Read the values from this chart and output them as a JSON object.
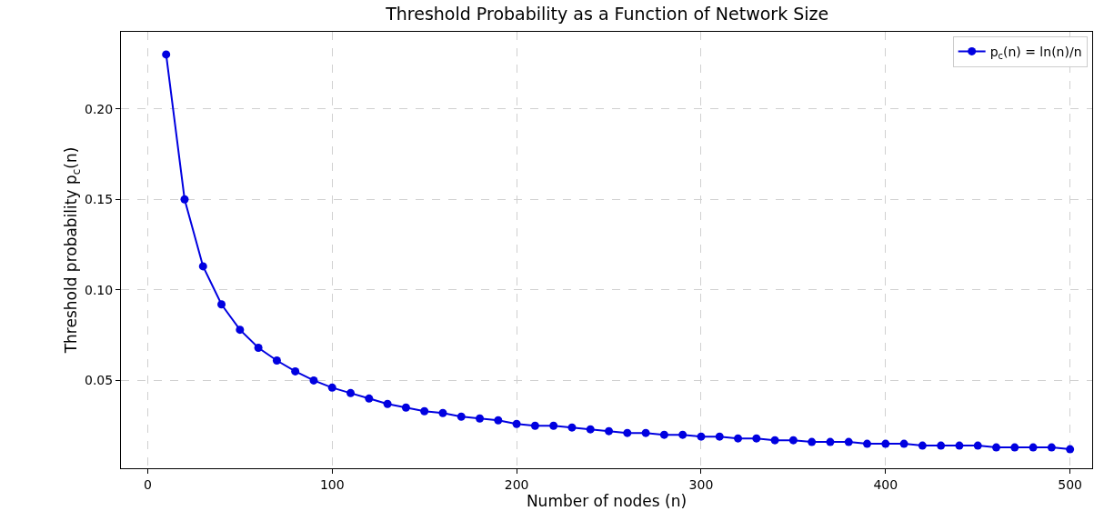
{
  "chart_data": {
    "type": "line",
    "title": "Threshold Probability as a Function of Network Size",
    "xlabel": "Number of nodes (n)",
    "ylabel": "Threshold probability p$_{c}$(n)",
    "x": [
      10,
      20,
      30,
      40,
      50,
      60,
      70,
      80,
      90,
      100,
      110,
      120,
      130,
      140,
      150,
      160,
      170,
      180,
      190,
      200,
      210,
      220,
      230,
      240,
      250,
      260,
      270,
      280,
      290,
      300,
      310,
      320,
      330,
      340,
      350,
      360,
      370,
      380,
      390,
      400,
      410,
      420,
      430,
      440,
      450,
      460,
      470,
      480,
      490,
      500
    ],
    "series": [
      {
        "name": "p$_{c}$(n) = ln(n)/n",
        "color": "#0000e0",
        "values": [
          0.23,
          0.15,
          0.113,
          0.092,
          0.078,
          0.068,
          0.061,
          0.055,
          0.05,
          0.046,
          0.043,
          0.04,
          0.037,
          0.035,
          0.033,
          0.032,
          0.03,
          0.029,
          0.028,
          0.026,
          0.025,
          0.025,
          0.024,
          0.023,
          0.022,
          0.021,
          0.021,
          0.02,
          0.02,
          0.019,
          0.019,
          0.018,
          0.018,
          0.017,
          0.017,
          0.016,
          0.016,
          0.016,
          0.015,
          0.015,
          0.015,
          0.014,
          0.014,
          0.014,
          0.014,
          0.013,
          0.013,
          0.013,
          0.013,
          0.012
        ]
      }
    ],
    "xlim": [
      -14.5,
      512
    ],
    "xticks": [
      0,
      100,
      200,
      300,
      400,
      500
    ],
    "ylim": [
      0.0015,
      0.2425
    ],
    "yticks": [
      {
        "value": 0.05,
        "label": "0.05"
      },
      {
        "value": 0.1,
        "label": "0.10"
      },
      {
        "value": 0.15,
        "label": "0.15"
      },
      {
        "value": 0.2,
        "label": "0.20"
      }
    ],
    "grid": true,
    "legend": "top right",
    "marker": "circle",
    "line_style": "solid"
  }
}
